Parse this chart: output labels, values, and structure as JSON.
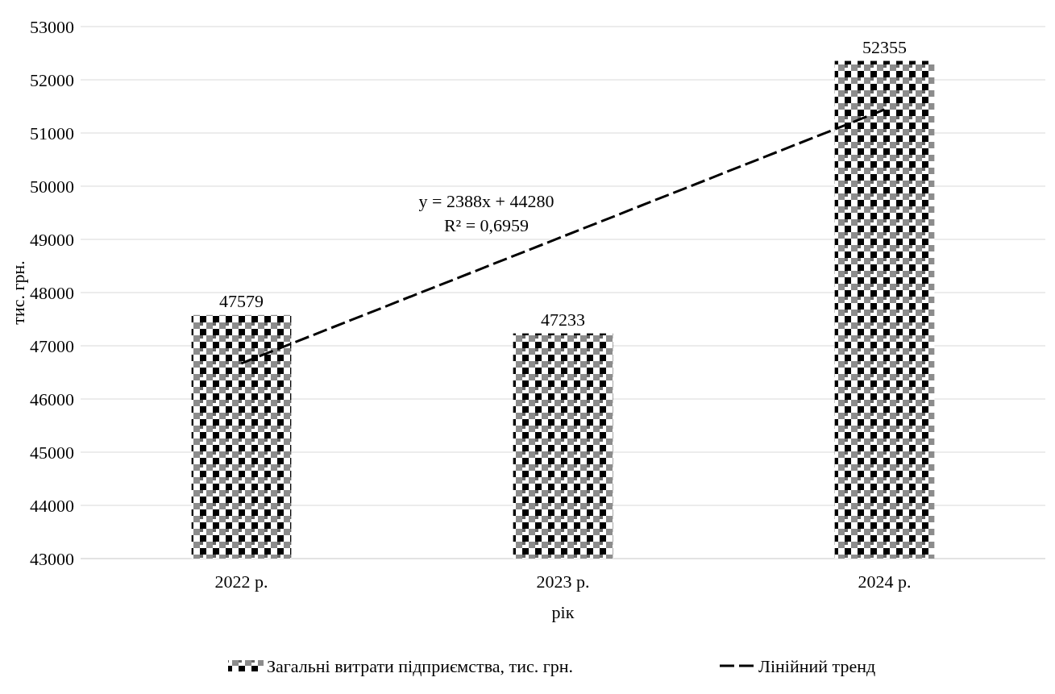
{
  "chart_data": {
    "type": "bar",
    "ylabel": "тис. грн.",
    "xlabel": "рік",
    "categories": [
      "2022 р.",
      "2023 р.",
      "2024 р."
    ],
    "series": [
      {
        "name": "Загальні витрати підприємства, тис. грн.",
        "color": "#000000",
        "values": [
          47579,
          47233,
          52355
        ],
        "value_labels": [
          "47579",
          "47233",
          "52355"
        ]
      },
      {
        "name": "Лінійний тренд",
        "type": "line",
        "color": "#000000",
        "line_style": "dashed",
        "x": [
          "2022 р.",
          "2024 р."
        ],
        "values": [
          46670,
          51440
        ]
      }
    ],
    "ylim": [
      43000,
      53000
    ],
    "yticks": [
      43000,
      44000,
      45000,
      46000,
      47000,
      48000,
      49000,
      50000,
      51000,
      52000,
      53000
    ],
    "grid": "y",
    "legend": "bottom",
    "annotations": [
      "y = 2388x + 44280",
      "R² = 0,6959"
    ]
  }
}
